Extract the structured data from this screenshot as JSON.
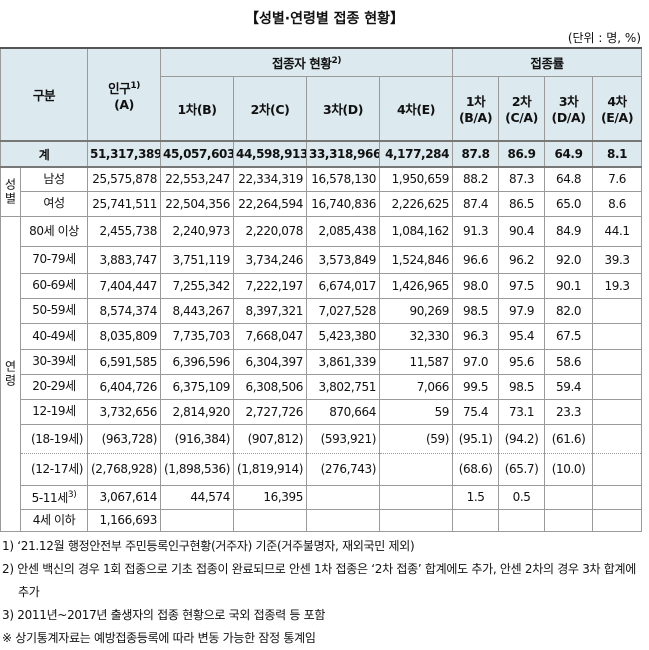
{
  "title": "【성별·연령별 접종 현황】",
  "unit": "(단위 : 명, %)",
  "header": {
    "group": "구분",
    "population": {
      "label": "인구",
      "note": "1)",
      "sub": "(A)"
    },
    "vaccinated": {
      "label": "접종자 현황",
      "note": "2)"
    },
    "rate": "접종률",
    "dose_columns": [
      {
        "label": "1차(B)"
      },
      {
        "label": "2차(C)"
      },
      {
        "label": "3차(D)"
      },
      {
        "label": "4차(E)"
      }
    ],
    "rate_columns": [
      {
        "label": "1차",
        "sub": "(B/A)"
      },
      {
        "label": "2차",
        "sub": "(C/A)"
      },
      {
        "label": "3차",
        "sub": "(D/A)"
      },
      {
        "label": "4차",
        "sub": "(E/A)"
      }
    ]
  },
  "sections": {
    "sex": "성별",
    "age": "연령"
  },
  "rows": [
    {
      "label": "계",
      "cells": [
        "51,317,389",
        "45,057,603",
        "44,598,913",
        "33,318,966",
        "4,177,284",
        "87.8",
        "86.9",
        "64.9",
        "8.1"
      ]
    },
    {
      "label": "남성",
      "cells": [
        "25,575,878",
        "22,553,247",
        "22,334,319",
        "16,578,130",
        "1,950,659",
        "88.2",
        "87.3",
        "64.8",
        "7.6"
      ]
    },
    {
      "label": "여성",
      "cells": [
        "25,741,511",
        "22,504,356",
        "22,264,594",
        "16,740,836",
        "2,226,625",
        "87.4",
        "86.5",
        "65.0",
        "8.6"
      ]
    },
    {
      "label": "80세 이상",
      "cells": [
        "2,455,738",
        "2,240,973",
        "2,220,078",
        "2,085,438",
        "1,084,162",
        "91.3",
        "90.4",
        "84.9",
        "44.1"
      ]
    },
    {
      "label": "70-79세",
      "cells": [
        "3,883,747",
        "3,751,119",
        "3,734,246",
        "3,573,849",
        "1,524,846",
        "96.6",
        "96.2",
        "92.0",
        "39.3"
      ]
    },
    {
      "label": "60-69세",
      "cells": [
        "7,404,447",
        "7,255,342",
        "7,222,197",
        "6,674,017",
        "1,426,965",
        "98.0",
        "97.5",
        "90.1",
        "19.3"
      ]
    },
    {
      "label": "50-59세",
      "cells": [
        "8,574,374",
        "8,443,267",
        "8,397,321",
        "7,027,528",
        "90,269",
        "98.5",
        "97.9",
        "82.0",
        null
      ]
    },
    {
      "label": "40-49세",
      "cells": [
        "8,035,809",
        "7,735,703",
        "7,668,047",
        "5,423,380",
        "32,330",
        "96.3",
        "95.4",
        "67.5",
        null
      ]
    },
    {
      "label": "30-39세",
      "cells": [
        "6,591,585",
        "6,396,596",
        "6,304,397",
        "3,861,339",
        "11,587",
        "97.0",
        "95.6",
        "58.6",
        null
      ]
    },
    {
      "label": "20-29세",
      "cells": [
        "6,404,726",
        "6,375,109",
        "6,308,506",
        "3,802,751",
        "7,066",
        "99.5",
        "98.5",
        "59.4",
        null
      ]
    },
    {
      "label": "12-19세",
      "cells": [
        "3,732,656",
        "2,814,920",
        "2,727,726",
        "870,664",
        "59",
        "75.4",
        "73.1",
        "23.3",
        null
      ]
    },
    {
      "label": "(18-19세)",
      "cells": [
        "(963,728)",
        "(916,384)",
        "(907,812)",
        "(593,921)",
        "(59)",
        "(95.1)",
        "(94.2)",
        "(61.6)",
        null
      ]
    },
    {
      "label": "(12-17세)",
      "cells": [
        "(2,768,928)",
        "(1,898,536)",
        "(1,819,914)",
        "(276,743)",
        null,
        "(68.6)",
        "(65.7)",
        "(10.0)",
        null
      ]
    },
    {
      "label": "5-11세",
      "note": "3)",
      "cells": [
        "3,067,614",
        "44,574",
        "16,395",
        null,
        null,
        "1.5",
        "0.5",
        null,
        null
      ]
    },
    {
      "label": "4세 이하",
      "cells": [
        "1,166,693",
        null,
        null,
        null,
        null,
        null,
        null,
        null,
        null
      ]
    }
  ],
  "footnotes": [
    "1) ‘21.12월 행정안전부 주민등록인구현황(거주자) 기준(거주불명자, 재외국민 제외)",
    "2) 안센 백신의 경우 1회 접종으로 기초 접종이 완료되므로 안센 1차 접종은 ‘2차 접종’ 합계에도 추가, 안센 2차의 경우 3차 합계에 추가",
    "3) 2011년~2017년 출생자의 접종 현황으로 국외 접종력 등 포함",
    "※ 상기통계자료는 예방접종등록에 따라 변동 가능한 잠정 통계임"
  ]
}
